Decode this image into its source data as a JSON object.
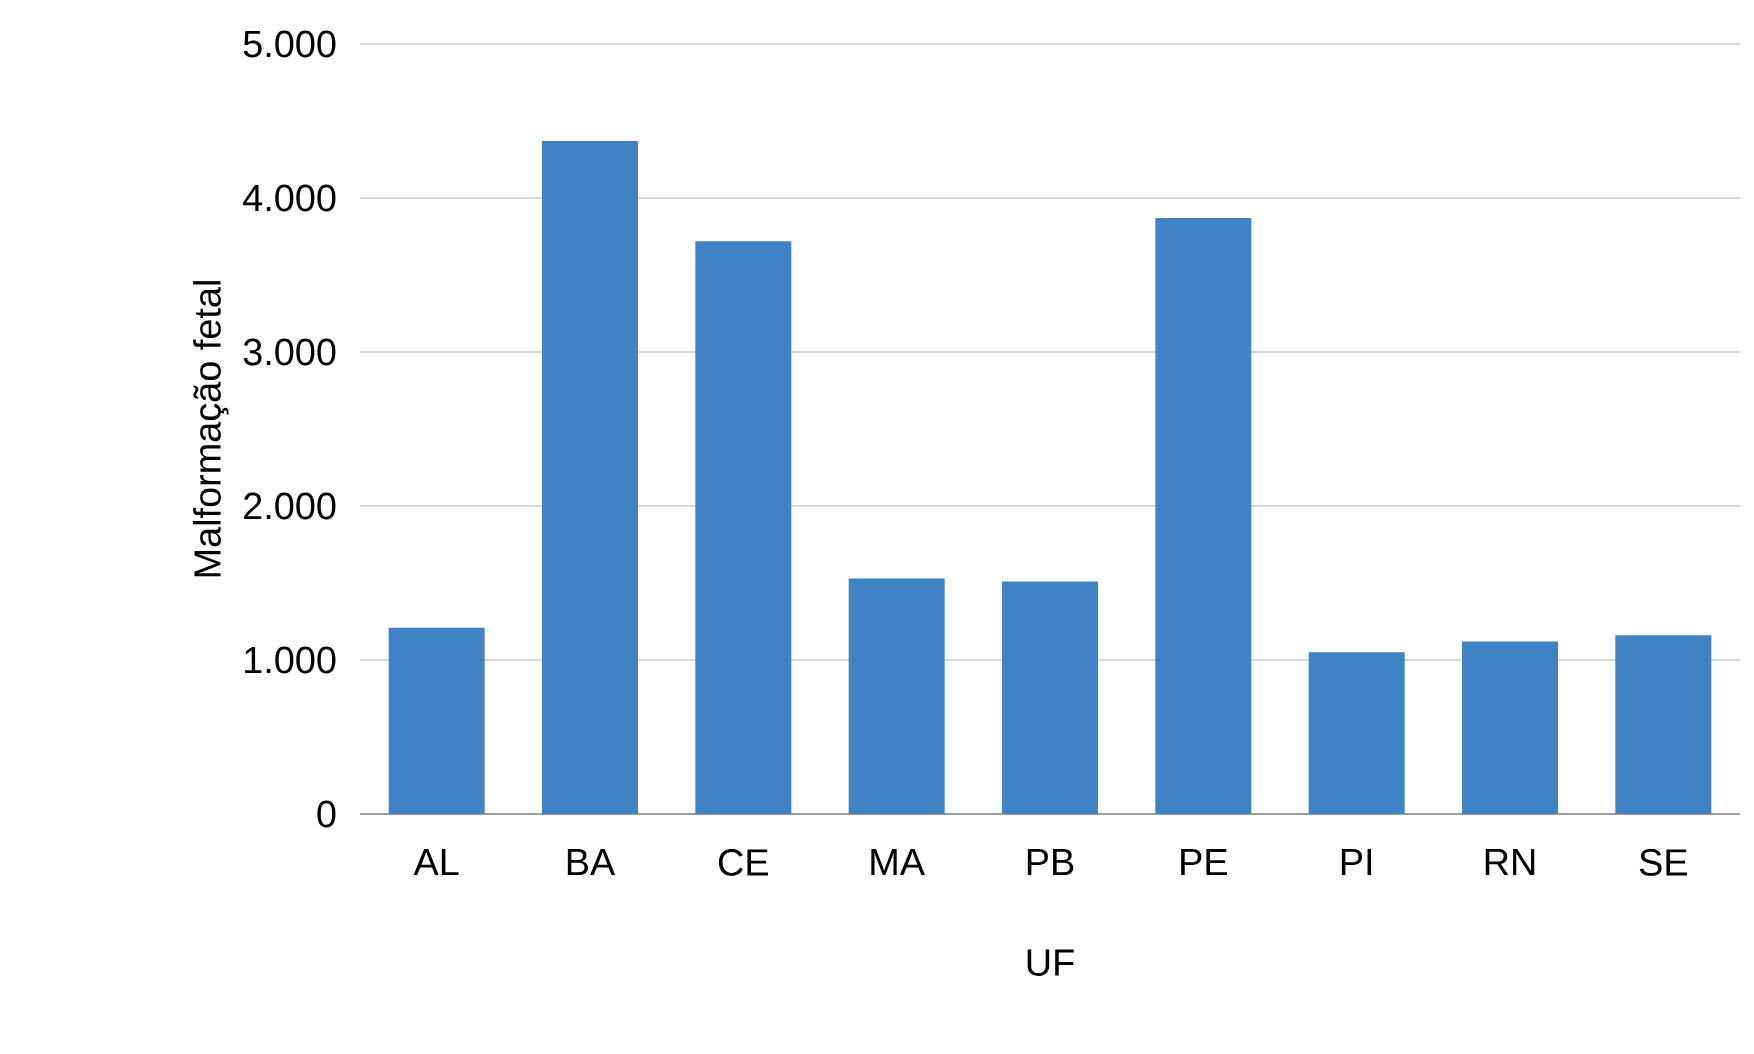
{
  "chart_data": {
    "type": "bar",
    "xlabel": "UF",
    "ylabel": "Malformação fetal",
    "categories": [
      "AL",
      "BA",
      "CE",
      "MA",
      "PB",
      "PE",
      "PI",
      "RN",
      "SE"
    ],
    "values": [
      1210,
      4370,
      3720,
      1530,
      1510,
      3870,
      1050,
      1120,
      1160
    ],
    "color": "#3f83c6",
    "ylim": [
      0,
      5000
    ],
    "yticks": [
      {
        "value": 0,
        "label": "0"
      },
      {
        "value": 1000,
        "label": "1.000"
      },
      {
        "value": 2000,
        "label": "2.000"
      },
      {
        "value": 3000,
        "label": "3.000"
      },
      {
        "value": 4000,
        "label": "4.000"
      },
      {
        "value": 5000,
        "label": "5.000"
      }
    ],
    "grid": "y"
  }
}
